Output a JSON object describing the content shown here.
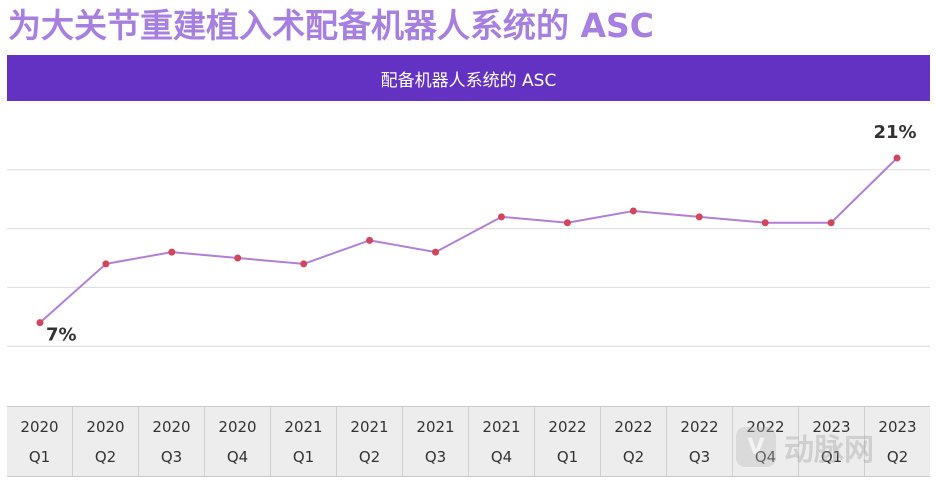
{
  "colors": {
    "title": "#a77fe0",
    "header_bg": "#6432c3",
    "line": "#b27fd8",
    "marker": "#d1465d",
    "grid": "#dcdcdc"
  },
  "title": "为大关节重建植入术配备机器人系统的 ASC",
  "chart_data": {
    "type": "line",
    "title": "配备机器人系统的 ASC",
    "categories": [
      [
        "2020",
        "Q1"
      ],
      [
        "2020",
        "Q2"
      ],
      [
        "2020",
        "Q3"
      ],
      [
        "2020",
        "Q4"
      ],
      [
        "2021",
        "Q1"
      ],
      [
        "2021",
        "Q2"
      ],
      [
        "2021",
        "Q3"
      ],
      [
        "2021",
        "Q4"
      ],
      [
        "2022",
        "Q1"
      ],
      [
        "2022",
        "Q2"
      ],
      [
        "2022",
        "Q3"
      ],
      [
        "2022",
        "Q4"
      ],
      [
        "2023",
        "Q1"
      ],
      [
        "2023",
        "Q2"
      ]
    ],
    "values": [
      7,
      12,
      13,
      12.5,
      12,
      14,
      13,
      16,
      15.5,
      16.5,
      16,
      15.5,
      15.5,
      21
    ],
    "data_labels": [
      {
        "index": 0,
        "text": "7%"
      },
      {
        "index": 13,
        "text": "21%"
      }
    ],
    "ylim": [
      0,
      25
    ],
    "grid": true,
    "xlabel": "",
    "ylabel": ""
  },
  "watermark": {
    "logo": "V",
    "text": "动脉网"
  }
}
